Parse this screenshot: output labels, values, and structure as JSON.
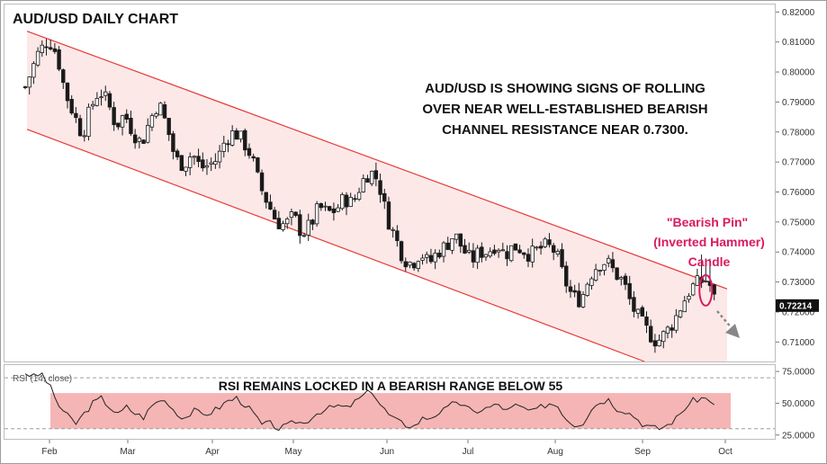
{
  "chart_data": [
    {
      "type": "candlestick",
      "title": "AUD/USD DAILY CHART",
      "annotation": [
        "AUD/USD IS SHOWING SIGNS OF ROLLING",
        "OVER NEAR WELL-ESTABLISHED BEARISH",
        "CHANNEL RESISTANCE NEAR 0.7300."
      ],
      "pin_annotation": [
        "\"Bearish Pin\"",
        "(Inverted Hammer)",
        "Candle"
      ],
      "x_tick_labels": [
        "Feb",
        "Mar",
        "Apr",
        "May",
        "Jun",
        "Jul",
        "Aug",
        "Sep",
        "Oct"
      ],
      "y_tick_labels": [
        "0.82000",
        "0.81000",
        "0.80000",
        "0.79000",
        "0.78000",
        "0.77000",
        "0.76000",
        "0.75000",
        "0.74000",
        "0.73000",
        "0.72000",
        "0.71000"
      ],
      "ylim": [
        0.7035,
        0.8225
      ],
      "last_price_label": "0.72214",
      "last_price": 0.72214,
      "channel": {
        "upper": {
          "start_price": 0.8136,
          "end_price": 0.7277
        },
        "lower": {
          "start_price": 0.7809,
          "end_price": 0.7035
        }
      },
      "close_path": [
        [
          0,
          0.795
        ],
        [
          6,
          0.806
        ],
        [
          11,
          0.811
        ],
        [
          15,
          0.806
        ],
        [
          19,
          0.793
        ],
        [
          23,
          0.786
        ],
        [
          27,
          0.779
        ],
        [
          31,
          0.788
        ],
        [
          35,
          0.794
        ],
        [
          39,
          0.79
        ],
        [
          43,
          0.782
        ],
        [
          47,
          0.786
        ],
        [
          51,
          0.78
        ],
        [
          55,
          0.776
        ],
        [
          59,
          0.784
        ],
        [
          63,
          0.79
        ],
        [
          67,
          0.782
        ],
        [
          71,
          0.771
        ],
        [
          75,
          0.769
        ],
        [
          79,
          0.773
        ],
        [
          83,
          0.768
        ],
        [
          87,
          0.769
        ],
        [
          91,
          0.771
        ],
        [
          95,
          0.778
        ],
        [
          99,
          0.78
        ],
        [
          103,
          0.777
        ],
        [
          107,
          0.772
        ],
        [
          111,
          0.762
        ],
        [
          115,
          0.756
        ],
        [
          119,
          0.75
        ],
        [
          123,
          0.749
        ],
        [
          127,
          0.752
        ],
        [
          131,
          0.746
        ],
        [
          135,
          0.749
        ],
        [
          139,
          0.755
        ],
        [
          143,
          0.753
        ],
        [
          147,
          0.754
        ],
        [
          151,
          0.758
        ],
        [
          155,
          0.756
        ],
        [
          159,
          0.763
        ],
        [
          163,
          0.767
        ],
        [
          167,
          0.764
        ],
        [
          171,
          0.752
        ],
        [
          175,
          0.745
        ],
        [
          179,
          0.738
        ],
        [
          183,
          0.736
        ],
        [
          187,
          0.74
        ],
        [
          191,
          0.736
        ],
        [
          195,
          0.74
        ],
        [
          199,
          0.742
        ],
        [
          203,
          0.746
        ],
        [
          207,
          0.741
        ],
        [
          211,
          0.737
        ],
        [
          215,
          0.74
        ],
        [
          219,
          0.74
        ],
        [
          223,
          0.743
        ],
        [
          227,
          0.739
        ],
        [
          231,
          0.742
        ],
        [
          235,
          0.741
        ],
        [
          239,
          0.739
        ],
        [
          243,
          0.741
        ],
        [
          247,
          0.742
        ],
        [
          251,
          0.74
        ],
        [
          255,
          0.731
        ],
        [
          259,
          0.725
        ],
        [
          263,
          0.724
        ],
        [
          267,
          0.732
        ],
        [
          271,
          0.736
        ],
        [
          275,
          0.737
        ],
        [
          279,
          0.733
        ],
        [
          283,
          0.73
        ],
        [
          287,
          0.722
        ],
        [
          291,
          0.717
        ],
        [
          295,
          0.713
        ],
        [
          299,
          0.71
        ],
        [
          303,
          0.713
        ],
        [
          307,
          0.717
        ],
        [
          311,
          0.723
        ],
        [
          315,
          0.728
        ],
        [
          319,
          0.73
        ],
        [
          323,
          0.731
        ],
        [
          327,
          0.7221
        ]
      ],
      "rsi": {
        "label": "RSI (14, close)",
        "note": "RSI REMAINS LOCKED IN A BEARISH RANGE BELOW 55",
        "y_tick_labels": [
          "75.0000",
          "50.0000",
          "25.0000"
        ],
        "ylim": [
          22,
          80
        ],
        "levels": [
          70,
          30
        ],
        "band": [
          30,
          58
        ],
        "values_path": [
          [
            0,
            74
          ],
          [
            4,
            71
          ],
          [
            8,
            73
          ],
          [
            12,
            62
          ],
          [
            16,
            48
          ],
          [
            20,
            40
          ],
          [
            24,
            34
          ],
          [
            28,
            42
          ],
          [
            32,
            50
          ],
          [
            36,
            54
          ],
          [
            40,
            47
          ],
          [
            44,
            41
          ],
          [
            48,
            47
          ],
          [
            52,
            42
          ],
          [
            56,
            39
          ],
          [
            60,
            48
          ],
          [
            64,
            53
          ],
          [
            68,
            50
          ],
          [
            72,
            41
          ],
          [
            76,
            39
          ],
          [
            80,
            44
          ],
          [
            84,
            41
          ],
          [
            88,
            43
          ],
          [
            92,
            47
          ],
          [
            96,
            52
          ],
          [
            100,
            54
          ],
          [
            104,
            49
          ],
          [
            108,
            42
          ],
          [
            112,
            33
          ],
          [
            116,
            34
          ],
          [
            120,
            30
          ],
          [
            124,
            32
          ],
          [
            128,
            36
          ],
          [
            132,
            34
          ],
          [
            136,
            40
          ],
          [
            140,
            44
          ],
          [
            144,
            46
          ],
          [
            148,
            48
          ],
          [
            152,
            46
          ],
          [
            156,
            51
          ],
          [
            160,
            56
          ],
          [
            164,
            60
          ],
          [
            168,
            49
          ],
          [
            172,
            41
          ],
          [
            176,
            36
          ],
          [
            180,
            33
          ],
          [
            184,
            32
          ],
          [
            188,
            38
          ],
          [
            192,
            39
          ],
          [
            196,
            43
          ],
          [
            200,
            46
          ],
          [
            204,
            52
          ],
          [
            208,
            47
          ],
          [
            212,
            43
          ],
          [
            216,
            45
          ],
          [
            220,
            47
          ],
          [
            224,
            49
          ],
          [
            228,
            44
          ],
          [
            232,
            48
          ],
          [
            236,
            46
          ],
          [
            240,
            43
          ],
          [
            244,
            47
          ],
          [
            248,
            50
          ],
          [
            252,
            48
          ],
          [
            256,
            38
          ],
          [
            260,
            33
          ],
          [
            264,
            35
          ],
          [
            268,
            46
          ],
          [
            272,
            51
          ],
          [
            276,
            53
          ],
          [
            280,
            46
          ],
          [
            284,
            44
          ],
          [
            288,
            40
          ],
          [
            292,
            34
          ],
          [
            296,
            31
          ],
          [
            300,
            30
          ],
          [
            304,
            33
          ],
          [
            308,
            38
          ],
          [
            312,
            46
          ],
          [
            316,
            52
          ],
          [
            320,
            54
          ],
          [
            324,
            53
          ],
          [
            327,
            45
          ]
        ]
      }
    }
  ],
  "colors": {
    "up": "#1a1a1a",
    "down": "#1a1a1a",
    "channel_line": "#e53935",
    "channel_fill": "#fde8e8",
    "rsi_band_fill": "#f5b5b5",
    "pin_color": "#d81b60",
    "arrow_color": "#888888",
    "price_tag_bg": "#111111"
  }
}
